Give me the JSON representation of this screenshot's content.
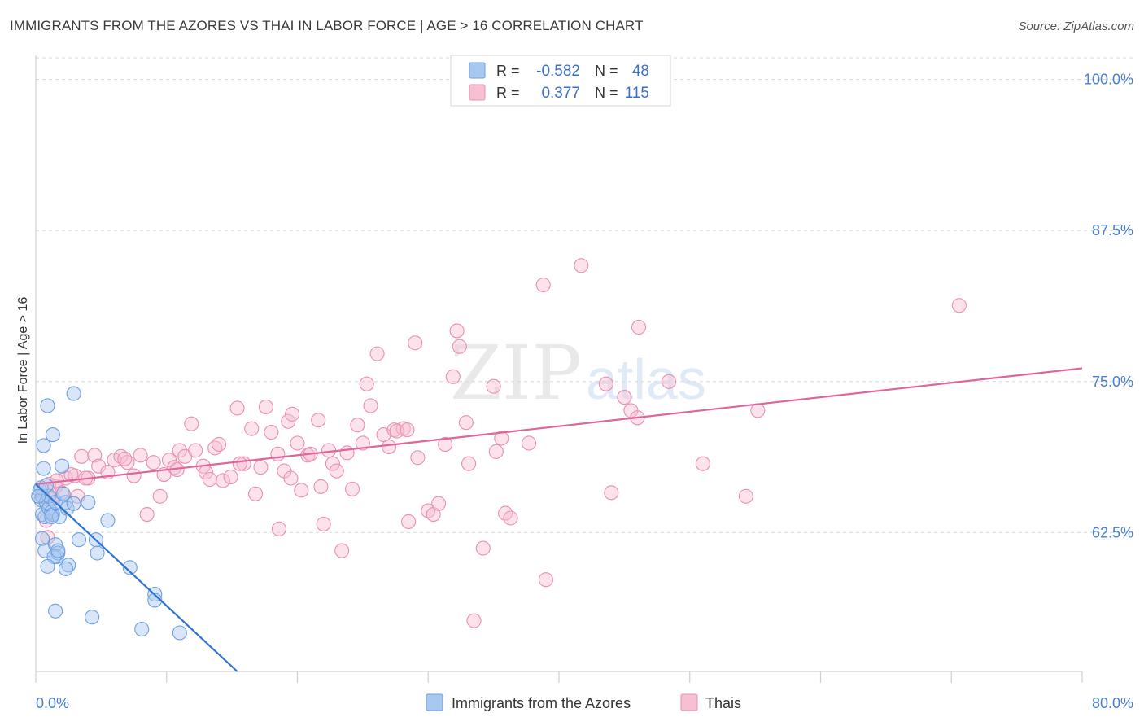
{
  "title": "IMMIGRANTS FROM THE AZORES VS THAI IN LABOR FORCE | AGE > 16 CORRELATION CHART",
  "source": "Source: ZipAtlas.com",
  "watermark": {
    "zip": "ZIP",
    "atlas": "atlas"
  },
  "colors": {
    "blue_fill": "#a9c8f0",
    "blue_stroke": "#6d9fe0",
    "blue_line": "#2f74d0",
    "pink_fill": "#f6bfd2",
    "pink_stroke": "#ea8fb0",
    "pink_line": "#e0659a",
    "axis_text": "#4a7fd0",
    "grid": "#d8d8d8"
  },
  "legend": {
    "rows": [
      {
        "r_label": "R =",
        "r_value": "-0.582",
        "n_label": "N =",
        "n_value": "48"
      },
      {
        "r_label": "R =",
        "r_value": "0.377",
        "n_label": "N =",
        "n_value": "115"
      }
    ]
  },
  "bottom_legend": [
    "Immigrants from the Azores",
    "Thais"
  ],
  "chart_data": {
    "type": "scatter",
    "title": "IMMIGRANTS FROM THE AZORES VS THAI IN LABOR FORCE | AGE > 16 CORRELATION CHART",
    "xlabel": "",
    "ylabel": "In Labor Force | Age > 16",
    "xlim": [
      0,
      80
    ],
    "ylim": [
      51,
      102
    ],
    "x_tick_labels": [
      "0.0%",
      "80.0%"
    ],
    "y_ticks": [
      100.0,
      87.5,
      75.0,
      62.5
    ],
    "y_tick_labels": [
      "100.0%",
      "87.5%",
      "75.0%",
      "62.5%"
    ],
    "series": [
      {
        "name": "Immigrants from the Azores",
        "r": -0.582,
        "n": 48,
        "trend": {
          "x": [
            0.0,
            15.4
          ],
          "y": [
            66.5,
            51.0
          ]
        },
        "points": [
          [
            0.3,
            66.0
          ],
          [
            0.4,
            65.2
          ],
          [
            0.5,
            64.0
          ],
          [
            0.6,
            67.8
          ],
          [
            0.5,
            65.5
          ],
          [
            0.8,
            65.0
          ],
          [
            0.7,
            63.8
          ],
          [
            1.0,
            64.5
          ],
          [
            1.2,
            64.2
          ],
          [
            1.3,
            64.0
          ],
          [
            1.0,
            65.5
          ],
          [
            1.5,
            65.0
          ],
          [
            0.6,
            69.7
          ],
          [
            0.9,
            73.0
          ],
          [
            1.3,
            70.6
          ],
          [
            2.0,
            68.0
          ],
          [
            2.3,
            65.0
          ],
          [
            4.0,
            65.0
          ],
          [
            2.9,
            74.0
          ],
          [
            1.8,
            63.8
          ],
          [
            2.4,
            64.5
          ],
          [
            1.2,
            63.8
          ],
          [
            0.5,
            62.0
          ],
          [
            0.7,
            61.0
          ],
          [
            1.5,
            61.5
          ],
          [
            1.6,
            60.5
          ],
          [
            1.7,
            60.8
          ],
          [
            1.4,
            60.5
          ],
          [
            1.7,
            61.0
          ],
          [
            2.5,
            59.8
          ],
          [
            2.3,
            59.5
          ],
          [
            0.9,
            59.7
          ],
          [
            3.3,
            61.9
          ],
          [
            4.6,
            61.9
          ],
          [
            4.7,
            60.8
          ],
          [
            5.5,
            63.5
          ],
          [
            7.2,
            59.6
          ],
          [
            9.1,
            57.4
          ],
          [
            9.1,
            56.9
          ],
          [
            1.5,
            56.0
          ],
          [
            4.3,
            55.5
          ],
          [
            8.1,
            54.5
          ],
          [
            11.0,
            54.2
          ],
          [
            0.4,
            66.2
          ],
          [
            0.8,
            66.4
          ],
          [
            2.1,
            65.7
          ],
          [
            0.2,
            65.5
          ],
          [
            2.9,
            64.9
          ]
        ]
      },
      {
        "name": "Thais",
        "r": 0.377,
        "n": 115,
        "trend": {
          "x": [
            0.0,
            80.0
          ],
          "y": [
            66.5,
            76.1
          ]
        },
        "points": [
          [
            0.5,
            65.5
          ],
          [
            1.0,
            66.5
          ],
          [
            1.2,
            65.3
          ],
          [
            1.5,
            66.3
          ],
          [
            2.0,
            65.8
          ],
          [
            2.3,
            67.0
          ],
          [
            3.0,
            67.2
          ],
          [
            3.2,
            65.5
          ],
          [
            3.5,
            68.8
          ],
          [
            4.0,
            67.0
          ],
          [
            4.5,
            68.9
          ],
          [
            4.8,
            68.0
          ],
          [
            5.5,
            67.5
          ],
          [
            6.0,
            68.5
          ],
          [
            6.5,
            68.8
          ],
          [
            7.0,
            68.3
          ],
          [
            7.5,
            67.2
          ],
          [
            8.0,
            68.9
          ],
          [
            8.5,
            64.0
          ],
          [
            9.0,
            68.3
          ],
          [
            9.5,
            65.5
          ],
          [
            9.8,
            67.3
          ],
          [
            10.2,
            68.5
          ],
          [
            10.6,
            67.9
          ],
          [
            11.0,
            69.3
          ],
          [
            11.4,
            68.8
          ],
          [
            11.9,
            71.5
          ],
          [
            12.2,
            69.3
          ],
          [
            12.8,
            68.0
          ],
          [
            13.0,
            67.5
          ],
          [
            13.3,
            66.9
          ],
          [
            13.7,
            69.5
          ],
          [
            14.0,
            69.8
          ],
          [
            14.3,
            66.8
          ],
          [
            14.9,
            67.1
          ],
          [
            15.4,
            72.8
          ],
          [
            15.9,
            68.2
          ],
          [
            16.5,
            71.1
          ],
          [
            16.8,
            65.7
          ],
          [
            17.2,
            67.9
          ],
          [
            17.6,
            72.9
          ],
          [
            18.0,
            70.8
          ],
          [
            18.5,
            69.0
          ],
          [
            18.6,
            62.8
          ],
          [
            19.0,
            67.6
          ],
          [
            19.3,
            71.7
          ],
          [
            19.6,
            72.3
          ],
          [
            20.0,
            69.9
          ],
          [
            20.3,
            66.0
          ],
          [
            20.8,
            68.9
          ],
          [
            21.0,
            69.0
          ],
          [
            21.6,
            71.8
          ],
          [
            21.8,
            66.3
          ],
          [
            22.0,
            63.2
          ],
          [
            22.4,
            69.3
          ],
          [
            22.7,
            68.2
          ],
          [
            23.0,
            67.6
          ],
          [
            23.4,
            61.0
          ],
          [
            23.8,
            69.1
          ],
          [
            24.2,
            66.1
          ],
          [
            24.6,
            71.4
          ],
          [
            25.0,
            69.9
          ],
          [
            25.3,
            74.8
          ],
          [
            25.6,
            73.0
          ],
          [
            26.1,
            77.3
          ],
          [
            26.6,
            70.6
          ],
          [
            27.0,
            69.6
          ],
          [
            27.4,
            71.0
          ],
          [
            28.1,
            71.1
          ],
          [
            28.5,
            63.4
          ],
          [
            29.0,
            78.2
          ],
          [
            29.2,
            68.7
          ],
          [
            30.0,
            64.3
          ],
          [
            30.4,
            64.0
          ],
          [
            30.8,
            64.9
          ],
          [
            31.3,
            69.8
          ],
          [
            31.9,
            75.4
          ],
          [
            32.2,
            79.2
          ],
          [
            32.4,
            77.9
          ],
          [
            32.9,
            71.6
          ],
          [
            33.1,
            68.2
          ],
          [
            33.5,
            55.2
          ],
          [
            34.2,
            61.2
          ],
          [
            35.0,
            74.6
          ],
          [
            35.2,
            69.2
          ],
          [
            35.6,
            70.3
          ],
          [
            35.9,
            64.1
          ],
          [
            36.3,
            63.7
          ],
          [
            37.7,
            69.9
          ],
          [
            38.8,
            83.0
          ],
          [
            39.0,
            58.6
          ],
          [
            41.7,
            84.6
          ],
          [
            43.6,
            74.8
          ],
          [
            44.0,
            65.8
          ],
          [
            45.0,
            73.7
          ],
          [
            45.5,
            72.6
          ],
          [
            46.0,
            72.0
          ],
          [
            46.1,
            79.5
          ],
          [
            48.4,
            75.0
          ],
          [
            51.0,
            68.2
          ],
          [
            54.3,
            65.5
          ],
          [
            55.2,
            72.6
          ],
          [
            70.6,
            81.3
          ],
          [
            1.3,
            65.3
          ],
          [
            2.7,
            67.3
          ],
          [
            3.8,
            67.0
          ],
          [
            6.8,
            68.6
          ],
          [
            10.8,
            67.7
          ],
          [
            15.6,
            68.2
          ],
          [
            19.5,
            67.0
          ],
          [
            27.6,
            70.9
          ],
          [
            28.4,
            71.0
          ],
          [
            0.8,
            63.5
          ],
          [
            1.6,
            66.8
          ],
          [
            0.9,
            62.1
          ]
        ]
      }
    ]
  }
}
